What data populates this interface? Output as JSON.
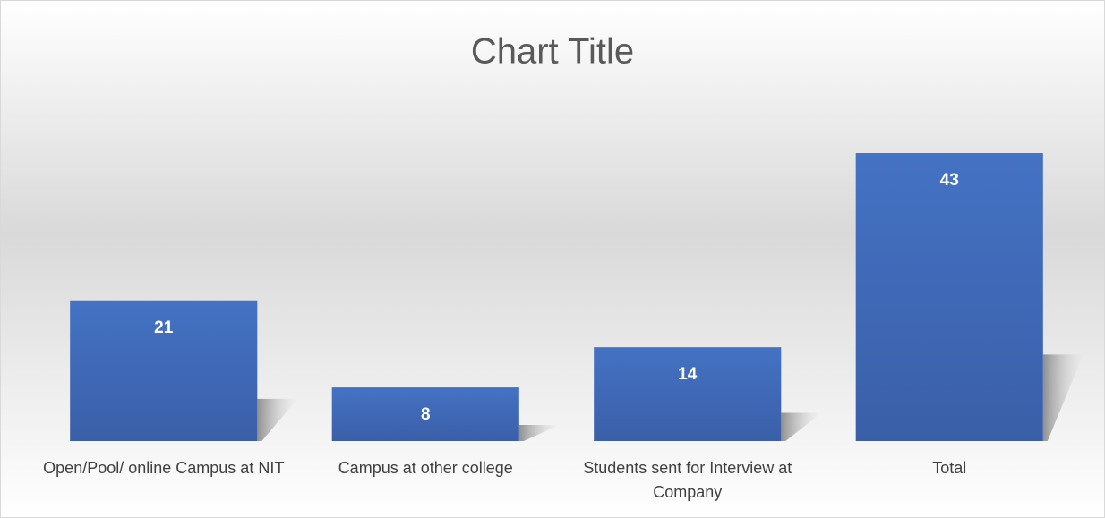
{
  "chart_data": {
    "type": "bar",
    "title": "Chart Title",
    "categories": [
      "Open/Pool/ online Campus at NIT",
      "Campus at other college",
      "Students sent for Interview at Company",
      "Total"
    ],
    "values": [
      21,
      8,
      14,
      43
    ],
    "color": "#4472c4"
  }
}
